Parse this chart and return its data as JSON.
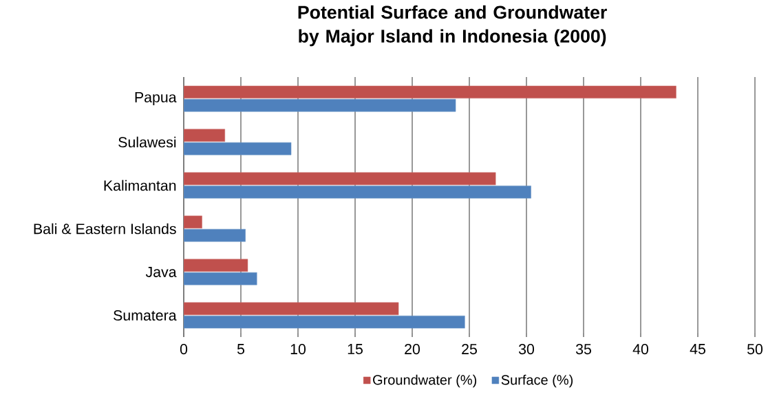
{
  "chart_data": {
    "type": "bar",
    "orientation": "horizontal",
    "title": "Potential Surface and Groundwater by Major Island in Indonesia (2000)",
    "categories": [
      "Papua",
      "Sulawesi",
      "Kalimantan",
      "Bali & Eastern Islands",
      "Java",
      "Sumatera"
    ],
    "series": [
      {
        "name": "Groundwater (%)",
        "color": "#c0504d",
        "values": [
          43.1,
          3.6,
          27.3,
          1.6,
          5.6,
          18.8
        ]
      },
      {
        "name": "Surface (%)",
        "color": "#4f81bd",
        "values": [
          23.8,
          9.4,
          30.4,
          5.4,
          6.4,
          24.6
        ]
      }
    ],
    "xlim": [
      0,
      50
    ],
    "xticks": [
      0,
      5,
      10,
      15,
      20,
      25,
      30,
      35,
      40,
      45,
      50
    ],
    "grid": "x",
    "legend": "bottom"
  }
}
